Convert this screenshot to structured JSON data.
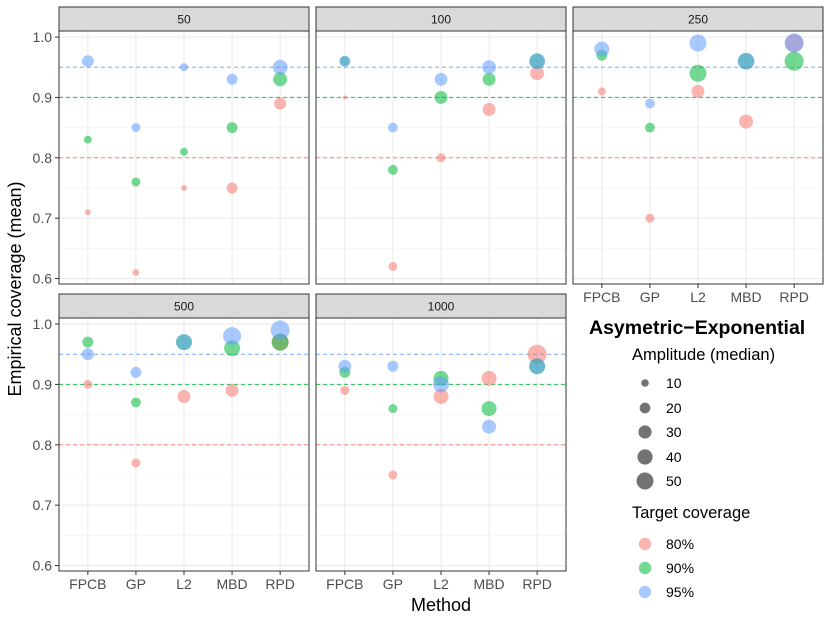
{
  "chart_data": {
    "type": "scatter",
    "title": "Asymetric−Exponential",
    "xlabel": "Method",
    "ylabel": "Empirical coverage (mean)",
    "categories": [
      "FPCB",
      "GP",
      "L2",
      "MBD",
      "RPD"
    ],
    "ylim": [
      0.591,
      1.01
    ],
    "yticks": [
      1.0,
      0.9,
      0.8,
      0.7,
      0.6
    ],
    "ytick_labels": [
      "1.0",
      "0.9",
      "0.8",
      "0.7",
      "0.6"
    ],
    "yminor": [
      0.95,
      0.85,
      0.75,
      0.65
    ],
    "grid": true,
    "legend_position": "right",
    "colors": {
      "80%": "#F8766D",
      "90%": "#00BA38",
      "95%": "#619CFF"
    },
    "target_lines": [
      {
        "value": 0.8,
        "color": "#F8766D"
      },
      {
        "value": 0.9,
        "color": "#00BA38"
      },
      {
        "value": 0.95,
        "color": "#619CFF"
      }
    ],
    "size_legend": {
      "title": "Amplitude (median)",
      "values": [
        10,
        20,
        30,
        40,
        50
      ],
      "labels": [
        "10",
        "20",
        "30",
        "40",
        "50"
      ]
    },
    "color_legend": {
      "title": "Target coverage",
      "entries": [
        "80%",
        "90%",
        "95%"
      ]
    },
    "facets": [
      {
        "label": "50",
        "series": [
          {
            "name": "80%",
            "coverage": [
              0.71,
              0.61,
              0.75,
              0.75,
              0.89
            ],
            "amplitude": [
              6,
              8,
              6,
              21,
              25
            ]
          },
          {
            "name": "90%",
            "coverage": [
              0.83,
              0.76,
              0.81,
              0.85,
              0.93
            ],
            "amplitude": [
              11,
              14,
              11,
              21,
              34
            ]
          },
          {
            "name": "95%",
            "coverage": [
              0.96,
              0.85,
              0.95,
              0.93,
              0.95
            ],
            "amplitude": [
              25,
              14,
              11,
              21,
              39
            ]
          }
        ]
      },
      {
        "label": "100",
        "series": [
          {
            "name": "80%",
            "coverage": [
              0.9,
              0.62,
              0.8,
              0.88,
              0.94
            ],
            "amplitude": [
              3,
              14,
              14,
              29,
              34
            ]
          },
          {
            "name": "90%",
            "coverage": [
              0.96,
              0.78,
              0.9,
              0.93,
              0.96
            ],
            "amplitude": [
              17,
              17,
              29,
              29,
              39
            ]
          },
          {
            "name": "95%",
            "coverage": [
              0.96,
              0.85,
              0.93,
              0.95,
              0.96
            ],
            "amplitude": [
              21,
              17,
              29,
              34,
              44
            ]
          }
        ]
      },
      {
        "label": "250",
        "series": [
          {
            "name": "80%",
            "coverage": [
              0.91,
              0.7,
              0.91,
              0.86,
              0.99
            ],
            "amplitude": [
              11,
              14,
              29,
              34,
              56
            ]
          },
          {
            "name": "90%",
            "coverage": [
              0.97,
              0.85,
              0.94,
              0.96,
              0.96
            ],
            "amplitude": [
              21,
              17,
              50,
              44,
              63
            ]
          },
          {
            "name": "95%",
            "coverage": [
              0.98,
              0.89,
              0.99,
              0.96,
              0.99
            ],
            "amplitude": [
              39,
              17,
              50,
              50,
              63
            ]
          }
        ]
      },
      {
        "label": "500",
        "series": [
          {
            "name": "80%",
            "coverage": [
              0.9,
              0.77,
              0.88,
              0.89,
              0.97
            ],
            "amplitude": [
              14,
              14,
              29,
              29,
              50
            ]
          },
          {
            "name": "90%",
            "coverage": [
              0.97,
              0.87,
              0.97,
              0.96,
              0.97
            ],
            "amplitude": [
              21,
              17,
              44,
              44,
              50
            ]
          },
          {
            "name": "95%",
            "coverage": [
              0.95,
              0.92,
              0.97,
              0.98,
              0.99
            ],
            "amplitude": [
              25,
              21,
              44,
              56,
              63
            ]
          }
        ]
      },
      {
        "label": "1000",
        "series": [
          {
            "name": "80%",
            "coverage": [
              0.89,
              0.75,
              0.88,
              0.91,
              0.95
            ],
            "amplitude": [
              14,
              14,
              39,
              39,
              63
            ]
          },
          {
            "name": "90%",
            "coverage": [
              0.92,
              0.86,
              0.91,
              0.86,
              0.93
            ],
            "amplitude": [
              21,
              14,
              39,
              39,
              44
            ]
          },
          {
            "name": "95%",
            "coverage": [
              0.93,
              0.93,
              0.9,
              0.83,
              0.93
            ],
            "amplitude": [
              29,
              21,
              44,
              34,
              44
            ]
          }
        ]
      }
    ]
  }
}
